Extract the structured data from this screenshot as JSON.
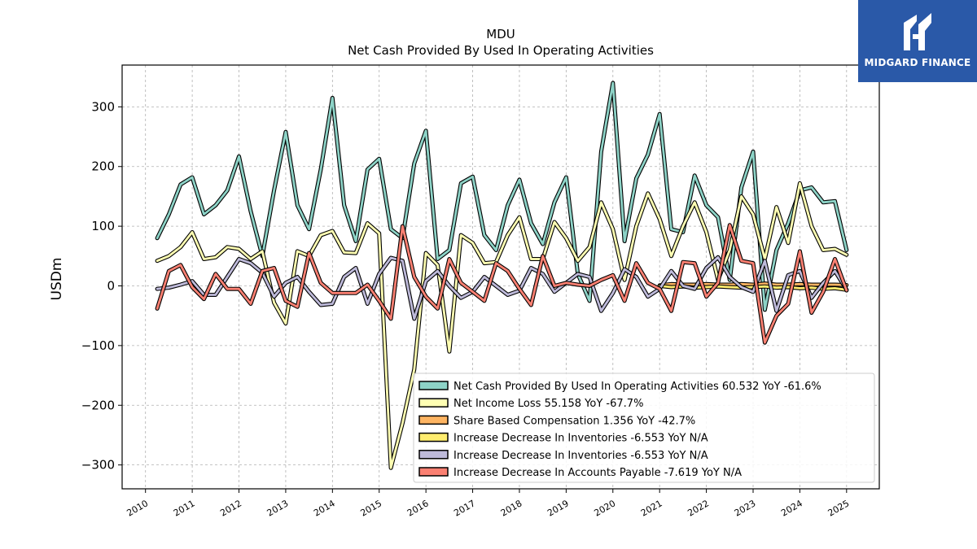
{
  "brand": {
    "name": "MIDGARD FINANCE"
  },
  "chart_data": {
    "type": "line",
    "title": "MDU",
    "subtitle": "Net Cash Provided By Used In Operating Activities",
    "ylabel": "USDm",
    "xlabel": "",
    "ylim": [
      -340,
      370
    ],
    "xlim": [
      2009.5,
      2025.7
    ],
    "y_ticks": [
      -300,
      -200,
      -100,
      0,
      100,
      200,
      300
    ],
    "y_tick_labels": [
      "−300",
      "−200",
      "−100",
      "0",
      "100",
      "200",
      "300"
    ],
    "x_ticks": [
      2010,
      2011,
      2012,
      2013,
      2014,
      2015,
      2016,
      2017,
      2018,
      2019,
      2020,
      2021,
      2022,
      2023,
      2024,
      2025
    ],
    "grid": true,
    "legend_position": "lower-right",
    "legend": [
      "Net Cash Provided By Used In Operating Activities  60.532 YoY -61.6%",
      "Net Income Loss  55.158 YoY -67.7%",
      "Share Based Compensation  1.356 YoY -42.7%",
      "Increase Decrease In Inventories  -6.553 YoY N/A",
      "Increase Decrease In Inventories  -6.553 YoY N/A",
      "Increase Decrease In Accounts Payable  -7.619 YoY N/A"
    ],
    "series": [
      {
        "name": "Net Cash Provided By Used In Operating Activities",
        "color": "#8dd3c7",
        "x": [
          2010.25,
          2010.5,
          2010.75,
          2011.0,
          2011.25,
          2011.5,
          2011.75,
          2012.0,
          2012.25,
          2012.5,
          2012.75,
          2013.0,
          2013.25,
          2013.5,
          2013.75,
          2014.0,
          2014.25,
          2014.5,
          2014.75,
          2015.0,
          2015.25,
          2015.5,
          2015.75,
          2016.0,
          2016.25,
          2016.5,
          2016.75,
          2017.0,
          2017.25,
          2017.5,
          2017.75,
          2018.0,
          2018.25,
          2018.5,
          2018.75,
          2019.0,
          2019.25,
          2019.5,
          2019.75,
          2020.0,
          2020.25,
          2020.5,
          2020.75,
          2021.0,
          2021.25,
          2021.5,
          2021.75,
          2022.0,
          2022.25,
          2022.5,
          2022.75,
          2023.0,
          2023.25,
          2023.5,
          2023.75,
          2024.0,
          2024.25,
          2024.5,
          2024.75,
          2025.0
        ],
        "values": [
          80,
          120,
          170,
          182,
          120,
          135,
          160,
          217,
          125,
          50,
          160,
          258,
          135,
          95,
          195,
          315,
          135,
          75,
          195,
          213,
          95,
          80,
          205,
          260,
          45,
          60,
          172,
          183,
          85,
          60,
          135,
          178,
          105,
          70,
          140,
          182,
          20,
          -25,
          225,
          340,
          75,
          180,
          220,
          288,
          95,
          90,
          185,
          135,
          115,
          10,
          165,
          225,
          -40,
          60,
          105,
          160,
          165,
          140,
          142,
          60
        ]
      },
      {
        "name": "Net Income Loss",
        "color": "#ffffb3",
        "x": [
          2010.25,
          2010.5,
          2010.75,
          2011.0,
          2011.25,
          2011.5,
          2011.75,
          2012.0,
          2012.25,
          2012.5,
          2012.75,
          2013.0,
          2013.25,
          2013.5,
          2013.75,
          2014.0,
          2014.25,
          2014.5,
          2014.75,
          2015.0,
          2015.25,
          2015.5,
          2015.75,
          2016.0,
          2016.25,
          2016.5,
          2016.75,
          2017.0,
          2017.25,
          2017.5,
          2017.75,
          2018.0,
          2018.25,
          2018.5,
          2018.75,
          2019.0,
          2019.25,
          2019.5,
          2019.75,
          2020.0,
          2020.25,
          2020.5,
          2020.75,
          2021.0,
          2021.25,
          2021.5,
          2021.75,
          2022.0,
          2022.25,
          2022.5,
          2022.75,
          2023.0,
          2023.25,
          2023.5,
          2023.75,
          2024.0,
          2024.25,
          2024.5,
          2024.75,
          2025.0
        ],
        "values": [
          42,
          50,
          65,
          90,
          45,
          48,
          65,
          62,
          45,
          58,
          -28,
          -63,
          58,
          50,
          85,
          92,
          56,
          55,
          105,
          88,
          -305,
          -230,
          -140,
          55,
          35,
          -110,
          85,
          72,
          38,
          40,
          85,
          115,
          45,
          45,
          107,
          80,
          42,
          65,
          140,
          95,
          10,
          100,
          155,
          112,
          50,
          100,
          140,
          90,
          10,
          60,
          150,
          120,
          45,
          132,
          72,
          172,
          100,
          60,
          62,
          52
        ]
      },
      {
        "name": "Share Based Compensation",
        "color": "#fdb462",
        "x": [
          2021.0,
          2021.25,
          2021.5,
          2021.75,
          2022.0,
          2022.25,
          2022.5,
          2022.75,
          2023.0,
          2023.25,
          2023.5,
          2023.75,
          2024.0,
          2024.25,
          2024.5,
          2024.75,
          2025.0
        ],
        "values": [
          1,
          3,
          2,
          2,
          3,
          2,
          2,
          3,
          2,
          4,
          2,
          2,
          3,
          2,
          2,
          2,
          1.356
        ]
      },
      {
        "name": "Increase Decrease In Inventories",
        "color": "#ffed6f",
        "x": [
          2021.0,
          2021.25,
          2021.5,
          2021.75,
          2022.0,
          2022.25,
          2022.5,
          2022.75,
          2023.0,
          2023.25,
          2023.5,
          2023.75,
          2024.0,
          2024.25,
          2024.5,
          2024.75,
          2025.0
        ],
        "values": [
          0,
          -2,
          -1,
          -3,
          -2,
          -1,
          -2,
          -3,
          -2,
          -1,
          -3,
          -2,
          -4,
          -3,
          -5,
          -4,
          -6.553
        ]
      },
      {
        "name": "Increase Decrease In Inventories",
        "color": "#bebada",
        "x": [
          2010.25,
          2010.5,
          2010.75,
          2011.0,
          2011.25,
          2011.5,
          2011.75,
          2012.0,
          2012.25,
          2012.5,
          2012.75,
          2013.0,
          2013.25,
          2013.5,
          2013.75,
          2014.0,
          2014.25,
          2014.5,
          2014.75,
          2015.0,
          2015.25,
          2015.5,
          2015.75,
          2016.0,
          2016.25,
          2016.5,
          2016.75,
          2017.0,
          2017.25,
          2017.5,
          2017.75,
          2018.0,
          2018.25,
          2018.5,
          2018.75,
          2019.0,
          2019.25,
          2019.5,
          2019.75,
          2020.0,
          2020.25,
          2020.5,
          2020.75,
          2021.0,
          2021.25,
          2021.5,
          2021.75,
          2022.0,
          2022.25,
          2022.5,
          2022.75,
          2023.0,
          2023.25,
          2023.5,
          2023.75,
          2024.0,
          2024.25,
          2024.5,
          2024.75,
          2025.0
        ],
        "values": [
          -5,
          -3,
          2,
          8,
          -15,
          -15,
          15,
          45,
          38,
          22,
          -18,
          5,
          15,
          -10,
          -32,
          -30,
          15,
          30,
          -30,
          20,
          47,
          42,
          -55,
          8,
          25,
          0,
          -20,
          -10,
          15,
          0,
          -15,
          -8,
          30,
          20,
          -10,
          5,
          20,
          15,
          -42,
          -12,
          28,
          15,
          -18,
          -5,
          25,
          0,
          -5,
          30,
          48,
          15,
          -2,
          -10,
          42,
          -42,
          18,
          25,
          -20,
          5,
          25,
          -6.553
        ]
      },
      {
        "name": "Increase Decrease In Accounts Payable",
        "color": "#fb8072",
        "x": [
          2010.25,
          2010.5,
          2010.75,
          2011.0,
          2011.25,
          2011.5,
          2011.75,
          2012.0,
          2012.25,
          2012.5,
          2012.75,
          2013.0,
          2013.25,
          2013.5,
          2013.75,
          2014.0,
          2014.25,
          2014.5,
          2014.75,
          2015.0,
          2015.25,
          2015.5,
          2015.75,
          2016.0,
          2016.25,
          2016.5,
          2016.75,
          2017.0,
          2017.25,
          2017.5,
          2017.75,
          2018.0,
          2018.25,
          2018.5,
          2018.75,
          2019.0,
          2019.25,
          2019.5,
          2019.75,
          2020.0,
          2020.25,
          2020.5,
          2020.75,
          2021.0,
          2021.25,
          2021.5,
          2021.75,
          2022.0,
          2022.25,
          2022.5,
          2022.75,
          2023.0,
          2023.25,
          2023.5,
          2023.75,
          2024.0,
          2024.25,
          2024.5,
          2024.75,
          2025.0
        ],
        "values": [
          -38,
          25,
          35,
          -2,
          -22,
          20,
          -5,
          -5,
          -30,
          25,
          30,
          -25,
          -35,
          55,
          5,
          -12,
          -12,
          -12,
          2,
          -25,
          -55,
          100,
          15,
          -18,
          -38,
          45,
          5,
          -10,
          -25,
          38,
          25,
          -5,
          -32,
          50,
          0,
          5,
          2,
          0,
          10,
          18,
          -25,
          38,
          5,
          -5,
          -42,
          40,
          38,
          -18,
          5,
          102,
          42,
          38,
          -95,
          -50,
          -30,
          58,
          -45,
          -10,
          45,
          -7.619
        ]
      }
    ]
  }
}
